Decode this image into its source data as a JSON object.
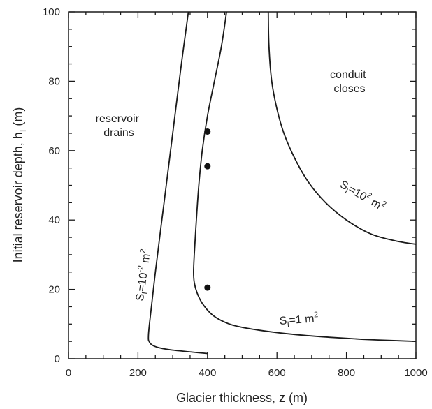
{
  "chart_data": {
    "type": "line",
    "title": "",
    "xlabel": "Glacier thickness,  z  (m)",
    "ylabel_main": "Initial reservoir depth,  h",
    "ylabel_sub": "I",
    "ylabel_unit": "  (m)",
    "xlim": [
      0,
      1000
    ],
    "ylim": [
      0,
      100
    ],
    "xticks": [
      0,
      200,
      400,
      600,
      800,
      1000
    ],
    "yticks": [
      0,
      20,
      40,
      60,
      80,
      100
    ],
    "grid": false,
    "series": [
      {
        "label_base": "S",
        "label_sub": "I",
        "label_eq": "=10",
        "label_exp": "-2",
        "label_unit": " m",
        "label_unit_exp": "2",
        "x": [
          400,
          300,
          260,
          240,
          232,
          230,
          233,
          250,
          275,
          300,
          325,
          345
        ],
        "y": [
          1.5,
          2.5,
          3.2,
          4,
          5,
          6,
          10,
          25,
          45,
          65,
          85,
          100
        ]
      },
      {
        "label_base": "S",
        "label_sub": "I",
        "label_eq": "=1",
        "label_exp": "",
        "label_unit": " m",
        "label_unit_exp": "2",
        "x": [
          1000,
          950,
          850,
          750,
          650,
          550,
          480,
          440,
          410,
          385,
          370,
          362,
          360,
          362,
          368,
          375,
          385,
          400,
          420,
          440,
          455
        ],
        "y": [
          5,
          5.2,
          5.6,
          6.2,
          7,
          8.2,
          9.5,
          11,
          13,
          16,
          19,
          22,
          25,
          30,
          40,
          50,
          60,
          70,
          80,
          90,
          100
        ]
      },
      {
        "label_base": "S",
        "label_sub": "I",
        "label_eq": "=10",
        "label_exp": "2",
        "label_unit": " m",
        "label_unit_exp": "2",
        "x": [
          575,
          577,
          585,
          600,
          620,
          650,
          690,
          740,
          800,
          870,
          940,
          1000
        ],
        "y": [
          100,
          90,
          80,
          72,
          65,
          58,
          51,
          45,
          40,
          36,
          34,
          33
        ]
      }
    ],
    "points": [
      {
        "x": 400,
        "y": 65.5
      },
      {
        "x": 400,
        "y": 55.5
      },
      {
        "x": 400,
        "y": 20.5
      }
    ],
    "annotations": [
      {
        "lines": [
          "reservoir",
          "drains"
        ]
      },
      {
        "lines": [
          "conduit",
          "closes"
        ]
      }
    ]
  }
}
